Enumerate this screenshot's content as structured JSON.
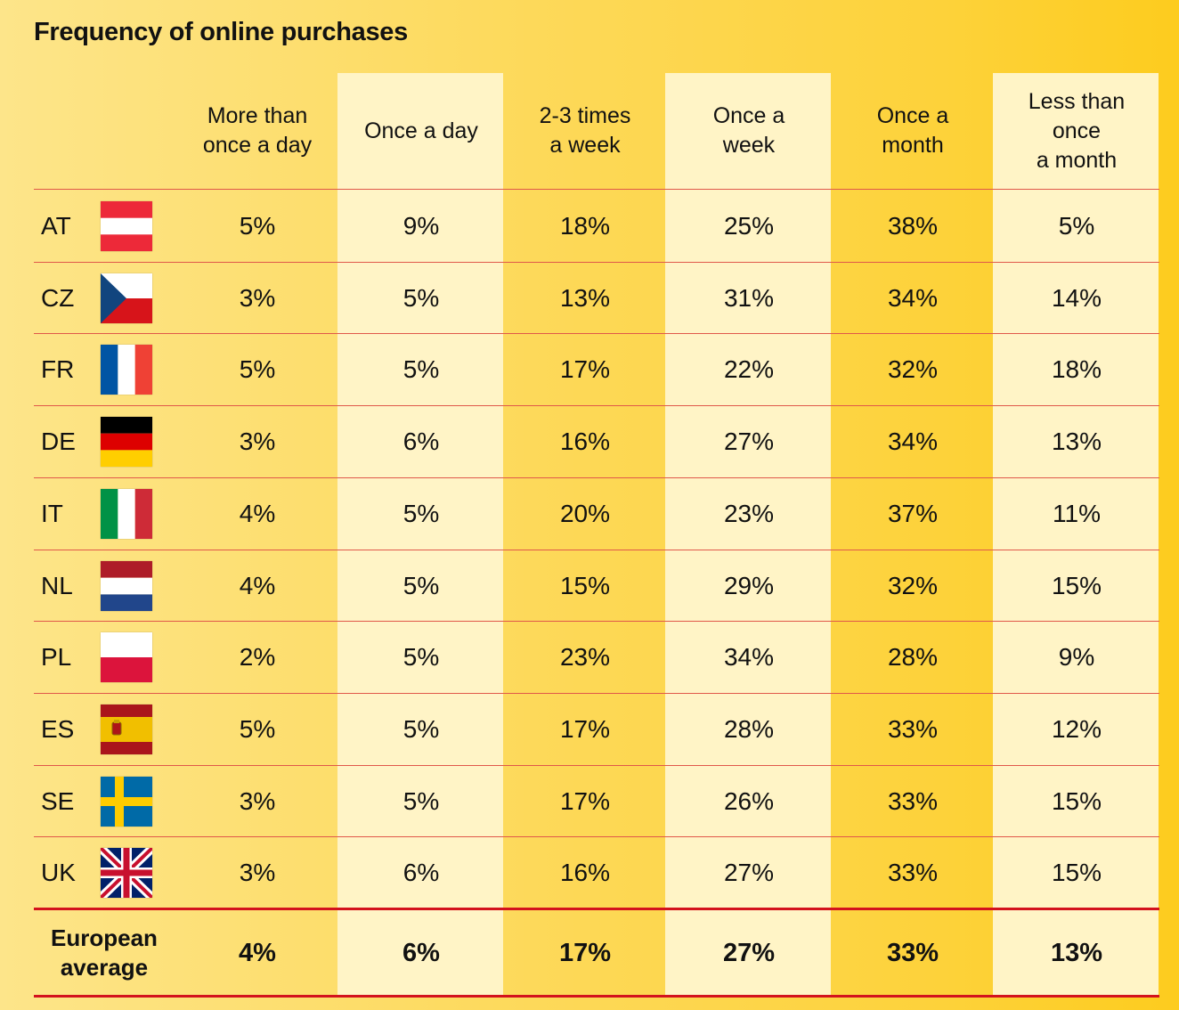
{
  "chart_data": {
    "type": "table",
    "title": "Frequency of online purchases",
    "columns": [
      "More than\nonce a day",
      "Once a day",
      "2-3 times\na week",
      "Once a\nweek",
      "Once a\nmonth",
      "Less than\nonce\na month"
    ],
    "rows": [
      {
        "code": "AT",
        "flag": "austria-flag",
        "values": [
          "5%",
          "9%",
          "18%",
          "25%",
          "38%",
          "5%"
        ]
      },
      {
        "code": "CZ",
        "flag": "czech-flag",
        "values": [
          "3%",
          "5%",
          "13%",
          "31%",
          "34%",
          "14%"
        ]
      },
      {
        "code": "FR",
        "flag": "france-flag",
        "values": [
          "5%",
          "5%",
          "17%",
          "22%",
          "32%",
          "18%"
        ]
      },
      {
        "code": "DE",
        "flag": "germany-flag",
        "values": [
          "3%",
          "6%",
          "16%",
          "27%",
          "34%",
          "13%"
        ]
      },
      {
        "code": "IT",
        "flag": "italy-flag",
        "values": [
          "4%",
          "5%",
          "20%",
          "23%",
          "37%",
          "11%"
        ]
      },
      {
        "code": "NL",
        "flag": "netherlands-flag",
        "values": [
          "4%",
          "5%",
          "15%",
          "29%",
          "32%",
          "15%"
        ]
      },
      {
        "code": "PL",
        "flag": "poland-flag",
        "values": [
          "2%",
          "5%",
          "23%",
          "34%",
          "28%",
          "9%"
        ]
      },
      {
        "code": "ES",
        "flag": "spain-flag",
        "values": [
          "5%",
          "5%",
          "17%",
          "28%",
          "33%",
          "12%"
        ]
      },
      {
        "code": "SE",
        "flag": "sweden-flag",
        "values": [
          "3%",
          "5%",
          "17%",
          "26%",
          "33%",
          "15%"
        ]
      },
      {
        "code": "UK",
        "flag": "uk-flag",
        "values": [
          "3%",
          "6%",
          "16%",
          "27%",
          "33%",
          "15%"
        ]
      }
    ],
    "average": {
      "label": "European\naverage",
      "values": [
        "4%",
        "6%",
        "17%",
        "27%",
        "33%",
        "13%"
      ]
    }
  },
  "colors": {
    "light_band": "#fff4c6",
    "row_divider": "#e0584a",
    "average_divider": "#d3121d"
  }
}
